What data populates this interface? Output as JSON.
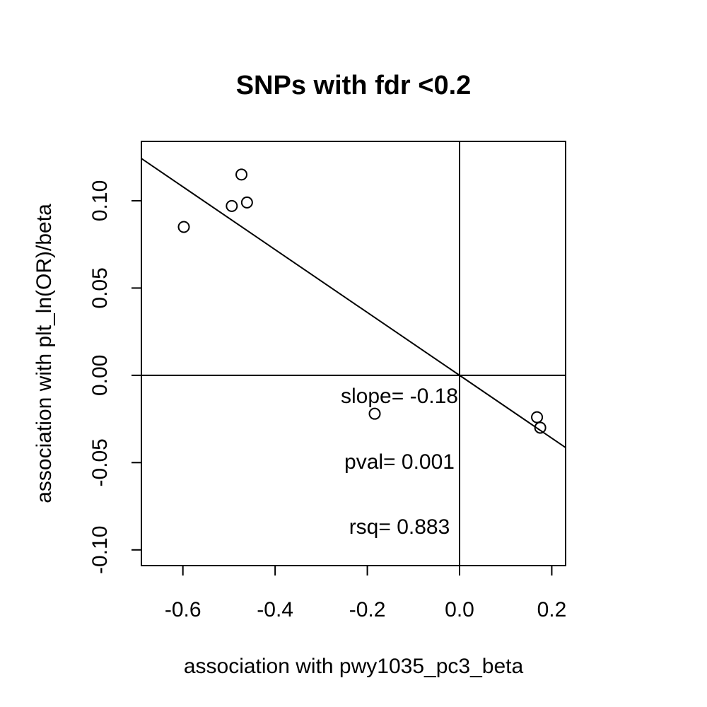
{
  "chart_data": {
    "type": "scatter",
    "title": "SNPs with fdr <0.2",
    "xlabel": "association with pwy1035_pc3_beta",
    "ylabel": "association with plt_ln(OR)/beta",
    "xlim": [
      -0.69,
      0.23
    ],
    "ylim": [
      -0.109,
      0.134
    ],
    "xticks": [
      -0.6,
      -0.4,
      -0.2,
      0.0,
      0.2
    ],
    "xtick_labels": [
      "-0.6",
      "-0.4",
      "-0.2",
      "0.0",
      "0.2"
    ],
    "yticks": [
      -0.1,
      -0.05,
      0.0,
      0.05,
      0.1
    ],
    "ytick_labels": [
      "-0.10",
      "-0.05",
      "0.00",
      "0.05",
      "0.10"
    ],
    "grid": false,
    "reference_lines": {
      "vertical_x": 0.0,
      "horizontal_y": 0.0
    },
    "points": [
      {
        "x": -0.598,
        "y": 0.085
      },
      {
        "x": -0.494,
        "y": 0.097
      },
      {
        "x": -0.473,
        "y": 0.115
      },
      {
        "x": -0.461,
        "y": 0.099
      },
      {
        "x": -0.184,
        "y": -0.022
      },
      {
        "x": 0.168,
        "y": -0.024
      },
      {
        "x": 0.175,
        "y": -0.03
      }
    ],
    "fit_line": {
      "slope": -0.18,
      "intercept": 0.0
    },
    "annotations": [
      "slope= -0.18",
      "pval= 0.001",
      "rsq= 0.883"
    ]
  }
}
